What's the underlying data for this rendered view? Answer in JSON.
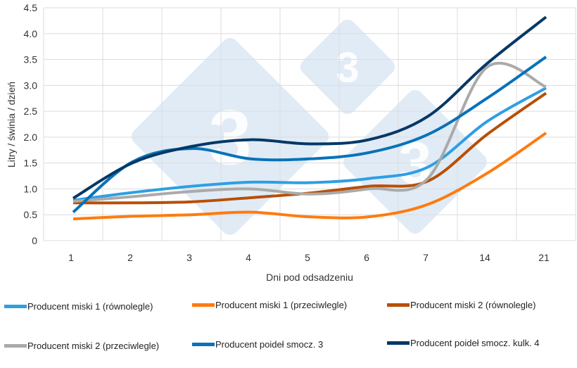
{
  "chart_data": {
    "type": "line",
    "title": "",
    "xlabel": "Dni pod odsadzeniu",
    "ylabel": "Litry / świnia / dzień",
    "ylim": [
      0,
      4.5
    ],
    "yticks": [
      "0",
      "0.5",
      "1.0",
      "1.5",
      "2.0",
      "2.5",
      "3.0",
      "3.5",
      "4.0",
      "4.5"
    ],
    "categories": [
      "1",
      "2",
      "3",
      "4",
      "5",
      "6",
      "7",
      "14",
      "21"
    ],
    "grid": true,
    "legend_position": "bottom",
    "smoothed": true,
    "series": [
      {
        "name": "Producent miski 1 (równolegle)",
        "color": "#2e9fe3",
        "values": [
          0.78,
          0.93,
          1.05,
          1.13,
          1.12,
          1.2,
          1.42,
          2.3,
          2.95
        ]
      },
      {
        "name": "Producent miski 1 (przeciwlegle)",
        "color": "#ff7b0f",
        "values": [
          0.42,
          0.47,
          0.5,
          0.55,
          0.46,
          0.46,
          0.7,
          1.3,
          2.08
        ]
      },
      {
        "name": "Producent miski 2 (równolegle)",
        "color": "#b84f07",
        "values": [
          0.73,
          0.73,
          0.75,
          0.83,
          0.92,
          1.05,
          1.15,
          2.05,
          2.85
        ]
      },
      {
        "name": "Producent miski 2 (przeciwlegle)",
        "color": "#aaaaaa",
        "values": [
          0.76,
          0.85,
          0.95,
          1.0,
          0.9,
          1.0,
          1.2,
          3.35,
          2.97
        ]
      },
      {
        "name": "Producent poideł smocz. 3",
        "color": "#0872b9",
        "values": [
          0.55,
          1.52,
          1.78,
          1.58,
          1.58,
          1.7,
          2.05,
          2.75,
          3.55
        ]
      },
      {
        "name": "Producent poideł smocz. kulk. 4",
        "color": "#033866",
        "values": [
          0.82,
          1.5,
          1.82,
          1.95,
          1.87,
          1.95,
          2.4,
          3.42,
          4.32
        ]
      }
    ]
  },
  "watermark": {
    "text": "3",
    "color": "#dce8f4"
  }
}
